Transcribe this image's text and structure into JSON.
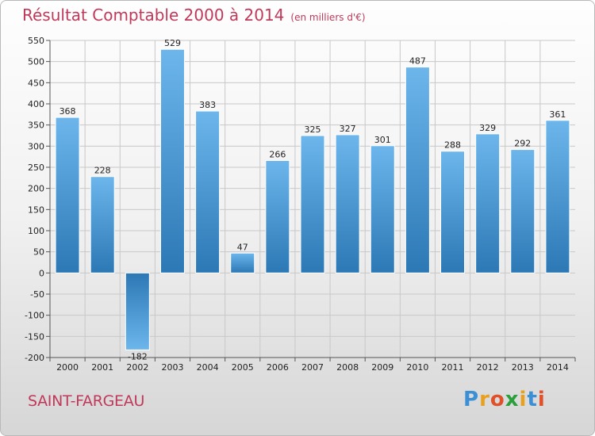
{
  "title": "Résultat Comptable 2000 à 2014",
  "subtitle": "(en milliers d'€)",
  "place": "SAINT-FARGEAU",
  "logo": {
    "letters": [
      "P",
      "r",
      "o",
      "x",
      "i",
      "t",
      "i"
    ],
    "colors": [
      "#3b8fd4",
      "#e8a11f",
      "#e0502a",
      "#2a9f3c",
      "#e8a11f",
      "#3b8fd4",
      "#e0502a"
    ]
  },
  "colors": {
    "bar_top": "#6cb6ec",
    "bar_bottom": "#2c78b5",
    "title": "#c0395a",
    "grid": "#c8c8c8"
  },
  "chart_data": {
    "type": "bar",
    "categories": [
      "2000",
      "2001",
      "2002",
      "2003",
      "2004",
      "2005",
      "2006",
      "2007",
      "2008",
      "2009",
      "2010",
      "2011",
      "2012",
      "2013",
      "2014"
    ],
    "values": [
      368,
      228,
      -182,
      529,
      383,
      47,
      266,
      325,
      327,
      301,
      487,
      288,
      329,
      292,
      361
    ],
    "ylim": [
      -200,
      550
    ],
    "yticks": [
      550,
      500,
      450,
      400,
      350,
      300,
      250,
      200,
      150,
      100,
      50,
      0,
      -50,
      -100,
      -150,
      -200
    ],
    "ytick_labels": [
      "550",
      "500",
      "450",
      "400",
      "350",
      "300",
      "250",
      "200",
      "150",
      "100",
      "50",
      "0",
      "-50",
      "-100",
      "-150",
      "-200"
    ],
    "grid": true
  }
}
